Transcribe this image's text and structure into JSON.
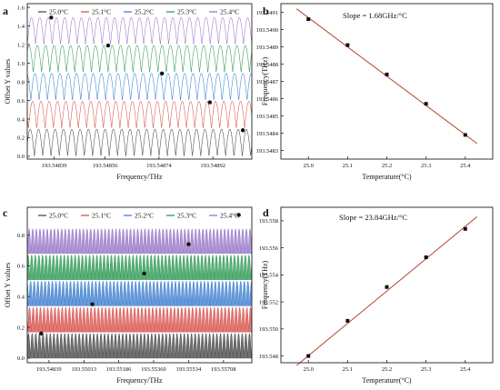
{
  "figure": {
    "panels": {
      "a": {
        "letter": "a"
      },
      "b": {
        "letter": "b",
        "annotation": "Slope = 1.68GHz/°C"
      },
      "c": {
        "letter": "c"
      },
      "d": {
        "letter": "d",
        "annotation": "Slope = 23.84GHz/°C"
      }
    },
    "colors": {
      "series": [
        "#9a77c8",
        "#2e9a55",
        "#3f7fd1",
        "#d9534f",
        "#4a4a4a"
      ],
      "fit_line": "#b5432f",
      "marker": "#111111"
    }
  },
  "chart_data": [
    {
      "panel": "a",
      "type": "line",
      "title": "",
      "xlabel": "Frequency/THz",
      "ylabel": "Offset Y values",
      "xlim": [
        193.5483,
        193.54905
      ],
      "ylim": [
        -0.03,
        1.64
      ],
      "xticks": [
        193.54839,
        193.54856,
        193.54874,
        193.54892
      ],
      "xtick_labels": [
        "193.54839",
        "193.54856",
        "193.54874",
        "193.54892"
      ],
      "yticks": [
        0.0,
        0.2,
        0.4,
        0.6,
        0.8,
        1.0,
        1.2,
        1.4,
        1.6
      ],
      "ytick_labels": [
        "0.0",
        "0.2",
        "0.4",
        "0.6",
        "0.8",
        "1.0",
        "1.2",
        "1.4",
        "1.6"
      ],
      "legend_position": "top",
      "fringes_per_series": 27,
      "series": [
        {
          "name": "25.4°C",
          "baseline": 1.2,
          "amplitude": 0.29,
          "marker": [
            193.54838,
            1.49
          ]
        },
        {
          "name": "25.3°C",
          "baseline": 0.9,
          "amplitude": 0.29,
          "marker": [
            193.54857,
            1.19
          ]
        },
        {
          "name": "25.2°C",
          "baseline": 0.6,
          "amplitude": 0.29,
          "marker": [
            193.54875,
            0.89
          ]
        },
        {
          "name": "25.1°C",
          "baseline": 0.3,
          "amplitude": 0.29,
          "marker": [
            193.54891,
            0.58
          ]
        },
        {
          "name": "25.0°C",
          "baseline": 0.0,
          "amplitude": 0.29,
          "marker": [
            193.54902,
            0.28
          ]
        }
      ]
    },
    {
      "panel": "b",
      "type": "scatter",
      "title": "",
      "xlabel": "Temperature(°C)",
      "ylabel": "Frequency(THz)",
      "xlim": [
        24.93,
        25.47
      ],
      "ylim": [
        193.54825,
        193.54915
      ],
      "xticks": [
        25.0,
        25.1,
        25.2,
        25.3,
        25.4
      ],
      "xtick_labels": [
        "25.0",
        "25.1",
        "25.2",
        "25.3",
        "25.4"
      ],
      "yticks": [
        193.5483,
        193.5484,
        193.5485,
        193.5486,
        193.5487,
        193.5488,
        193.5489,
        193.549,
        193.5491
      ],
      "ytick_labels": [
        "193.5483",
        "193.5484",
        "193.5485",
        "193.5486",
        "193.5487",
        "193.5488",
        "193.5489",
        "193.5490",
        "193.5491"
      ],
      "x": [
        25.0,
        25.1,
        25.2,
        25.3,
        25.4
      ],
      "y": [
        193.54906,
        193.54891,
        193.54874,
        193.54857,
        193.54839
      ],
      "fit": {
        "x": [
          24.97,
          25.43
        ],
        "y": [
          193.54912,
          193.54834
        ]
      }
    },
    {
      "panel": "c",
      "type": "line",
      "title": "",
      "xlabel": "Frequency/THz",
      "ylabel": "Offset Y values",
      "xlim": [
        193.54731,
        193.55849
      ],
      "ylim": [
        -0.03,
        0.98
      ],
      "xticks": [
        193.54839,
        193.55013,
        193.55186,
        193.5536,
        193.55534,
        193.55708
      ],
      "xtick_labels": [
        "193.54839",
        "193.55013",
        "193.55186",
        "193.55360",
        "193.55534",
        "193.55708"
      ],
      "yticks": [
        0.0,
        0.2,
        0.4,
        0.6,
        0.8
      ],
      "ytick_labels": [
        "0.0",
        "0.2",
        "0.4",
        "0.6",
        "0.8"
      ],
      "legend_position": "top",
      "fringes_per_series": 62,
      "series": [
        {
          "name": "25.4°C",
          "baseline": 0.68,
          "amplitude": 0.16,
          "marker": [
            193.55784,
            0.93
          ]
        },
        {
          "name": "25.3°C",
          "baseline": 0.51,
          "amplitude": 0.16,
          "marker": [
            193.55534,
            0.74
          ]
        },
        {
          "name": "25.2°C",
          "baseline": 0.34,
          "amplitude": 0.16,
          "marker": [
            193.55313,
            0.55
          ]
        },
        {
          "name": "25.1°C",
          "baseline": 0.17,
          "amplitude": 0.16,
          "marker": [
            193.55055,
            0.35
          ]
        },
        {
          "name": "25.0°C",
          "baseline": 0.0,
          "amplitude": 0.16,
          "marker": [
            193.548,
            0.16
          ]
        }
      ]
    },
    {
      "panel": "d",
      "type": "scatter",
      "title": "",
      "xlabel": "Temperature(°C)",
      "ylabel": "Frequency(THz)",
      "xlim": [
        24.93,
        25.47
      ],
      "ylim": [
        193.5475,
        193.559
      ],
      "xticks": [
        25.0,
        25.1,
        25.2,
        25.3,
        25.4
      ],
      "xtick_labels": [
        "25.0",
        "25.1",
        "25.2",
        "25.3",
        "25.4"
      ],
      "yticks": [
        193.548,
        193.55,
        193.552,
        193.554,
        193.556,
        193.558
      ],
      "ytick_labels": [
        "193.548",
        "193.550",
        "193.552",
        "193.554",
        "193.556",
        "193.558"
      ],
      "x": [
        25.0,
        25.1,
        25.2,
        25.3,
        25.4
      ],
      "y": [
        193.548,
        193.5506,
        193.5531,
        193.5553,
        193.5574
      ],
      "fit": {
        "x": [
          24.97,
          25.43
        ],
        "y": [
          193.5473,
          193.5583
        ]
      }
    }
  ]
}
